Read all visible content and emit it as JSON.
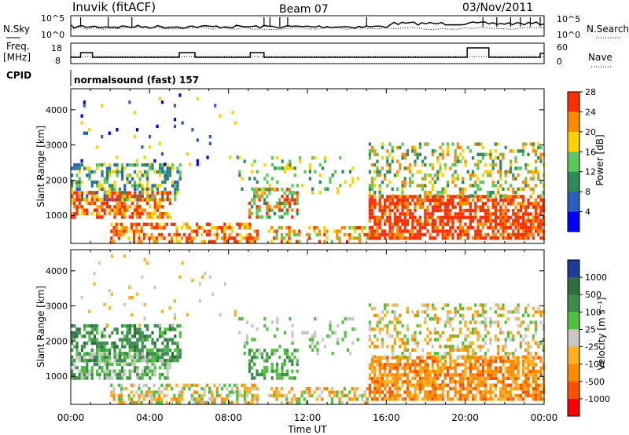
{
  "header": {
    "station": "Inuvik (fitACF)",
    "beam": "Beam 07",
    "date": "03/Nov/2011"
  },
  "noise_panel": {
    "left_label": "N.Sky",
    "right_label": "N.Search",
    "left_ticks": [
      "10^5",
      "10^0"
    ],
    "right_ticks": [
      "10^5",
      "10^0"
    ]
  },
  "freq_panel": {
    "left_label_1": "Freq.",
    "left_label_2": "[MHz]",
    "right_label": "Nave",
    "left_ticks": [
      "18",
      "8"
    ],
    "right_ticks": [
      "60",
      "0"
    ]
  },
  "cpid": {
    "label": "CPID",
    "program": "normalsound (fast) 157"
  },
  "colors": {
    "power_scale": [
      "#0000ff",
      "#2a5fbf",
      "#2e8b57",
      "#5ac85a",
      "#ffd000",
      "#ff8c00",
      "#ff3000"
    ],
    "velocity_scale": [
      "#1e3c96",
      "#2e6e3c",
      "#3c8c50",
      "#50c040",
      "#c8c8c0",
      "#ffb020",
      "#ff8c00",
      "#ff5000",
      "#ff0000"
    ]
  },
  "chart_data": [
    {
      "type": "heatmap",
      "title": "Power",
      "ylabel": "Slant Range [km]",
      "xlabel": "Time UT",
      "x_ticks": [
        "00:00",
        "04:00",
        "08:00",
        "12:00",
        "16:00",
        "20:00",
        "00:00"
      ],
      "y_ticks": [
        "1000",
        "2000",
        "3000",
        "4000"
      ],
      "ylim": [
        200,
        4600
      ],
      "colorbar": {
        "label": "Power [dB]",
        "ticks": [
          "4",
          "8",
          "12",
          "16",
          "20",
          "24",
          "28"
        ]
      }
    },
    {
      "type": "heatmap",
      "title": "Velocity",
      "ylabel": "Slant Range [km]",
      "xlabel": "Time UT",
      "x_ticks": [
        "00:00",
        "04:00",
        "08:00",
        "12:00",
        "16:00",
        "20:00",
        "00:00"
      ],
      "y_ticks": [
        "1000",
        "2000",
        "3000",
        "4000"
      ],
      "ylim": [
        200,
        4600
      ],
      "colorbar": {
        "label": "Velocity [m s⁻¹]",
        "ticks": [
          "1000",
          "500",
          "100",
          "25",
          "-25",
          "-100",
          "-500",
          "-1000"
        ]
      }
    }
  ]
}
